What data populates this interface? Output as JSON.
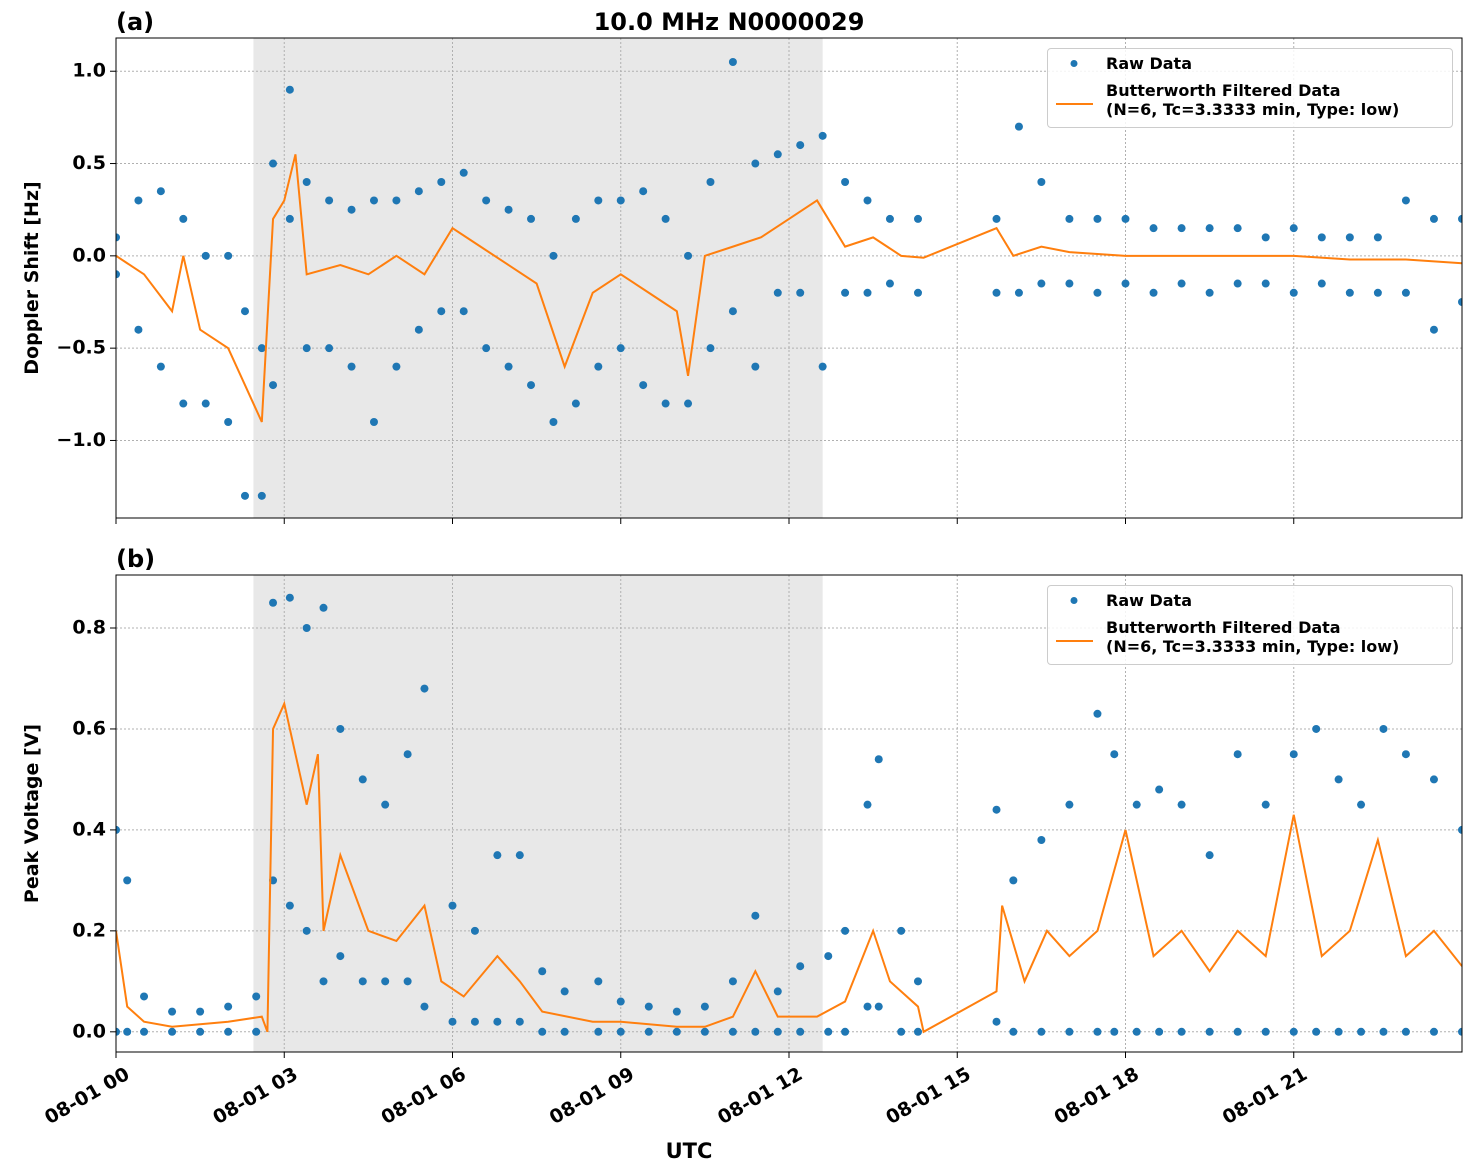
{
  "chart_data": [
    {
      "type": "scatter",
      "title": "10.0 MHz N0000029",
      "panel_label": "(a)",
      "ylabel": "Doppler Shift [Hz]",
      "xlim": [
        0,
        24
      ],
      "ylim": [
        -1.42,
        1.18
      ],
      "grid": true,
      "legend": "upper right",
      "shade": [
        2.45,
        12.6
      ],
      "shade_color": "#e8e8e8",
      "xticks": [
        {
          "value": 0,
          "label": "08-01 00"
        },
        {
          "value": 3,
          "label": "08-01 03"
        },
        {
          "value": 6,
          "label": "08-01 06"
        },
        {
          "value": 9,
          "label": "08-01 09"
        },
        {
          "value": 12,
          "label": "08-01 12"
        },
        {
          "value": 15,
          "label": "08-01 15"
        },
        {
          "value": 18,
          "label": "08-01 18"
        },
        {
          "value": 21,
          "label": "08-01 21"
        }
      ],
      "yticks": [
        {
          "value": -1.0,
          "label": "−1.0"
        },
        {
          "value": -0.5,
          "label": "−0.5"
        },
        {
          "value": 0.0,
          "label": "0.0"
        },
        {
          "value": 0.5,
          "label": "0.5"
        },
        {
          "value": 1.0,
          "label": "1.0"
        }
      ],
      "series": [
        {
          "name": "Raw Data",
          "kind": "marker",
          "color": "#1f77b4",
          "x": [
            0,
            0,
            0.4,
            0.4,
            0.8,
            0.8,
            1.2,
            1.2,
            1.6,
            1.6,
            2.0,
            2.0,
            2.3,
            2.3,
            2.6,
            2.6,
            2.8,
            2.8,
            3.1,
            3.1,
            3.4,
            3.4,
            3.8,
            3.8,
            4.2,
            4.2,
            4.6,
            4.6,
            5.0,
            5.0,
            5.4,
            5.4,
            5.8,
            5.8,
            6.2,
            6.2,
            6.6,
            6.6,
            7.0,
            7.0,
            7.4,
            7.4,
            7.8,
            7.8,
            8.2,
            8.2,
            8.6,
            8.6,
            9.0,
            9.0,
            9.4,
            9.4,
            9.8,
            9.8,
            10.2,
            10.2,
            10.6,
            10.6,
            11.0,
            11.0,
            11.4,
            11.4,
            11.8,
            11.8,
            12.2,
            12.2,
            12.6,
            12.6,
            13.0,
            13.0,
            13.4,
            13.4,
            13.8,
            13.8,
            14.3,
            14.3,
            15.7,
            15.7,
            16.1,
            16.1,
            16.5,
            16.5,
            17.0,
            17.0,
            17.5,
            17.5,
            18.0,
            18.0,
            18.5,
            18.5,
            19.0,
            19.0,
            19.5,
            19.5,
            20.0,
            20.0,
            20.5,
            20.5,
            21.0,
            21.0,
            21.5,
            21.5,
            22.0,
            22.0,
            22.5,
            22.5,
            23.0,
            23.0,
            23.5,
            23.5,
            24.0,
            24.0
          ],
          "values": [
            0.1,
            -0.1,
            0.3,
            -0.4,
            0.35,
            -0.6,
            0.2,
            -0.8,
            0.0,
            -0.8,
            0.0,
            -0.9,
            -0.3,
            -1.3,
            -0.5,
            -1.3,
            0.5,
            -0.7,
            0.9,
            0.2,
            0.4,
            -0.5,
            0.3,
            -0.5,
            0.25,
            -0.6,
            0.3,
            -0.9,
            0.3,
            -0.6,
            0.35,
            -0.4,
            0.4,
            -0.3,
            0.45,
            -0.3,
            0.3,
            -0.5,
            0.25,
            -0.6,
            0.2,
            -0.7,
            0.0,
            -0.9,
            0.2,
            -0.8,
            0.3,
            -0.6,
            0.3,
            -0.5,
            0.35,
            -0.7,
            0.2,
            -0.8,
            0.0,
            -0.8,
            0.4,
            -0.5,
            1.05,
            -0.3,
            0.5,
            -0.6,
            0.55,
            -0.2,
            0.6,
            -0.2,
            0.65,
            -0.6,
            0.4,
            -0.2,
            0.3,
            -0.2,
            0.2,
            -0.15,
            0.2,
            -0.2,
            0.2,
            -0.2,
            0.7,
            -0.2,
            0.4,
            -0.15,
            0.2,
            -0.15,
            0.2,
            -0.2,
            0.2,
            -0.15,
            0.15,
            -0.2,
            0.15,
            -0.15,
            0.15,
            -0.2,
            0.15,
            -0.15,
            0.1,
            -0.15,
            0.15,
            -0.2,
            0.1,
            -0.15,
            0.1,
            -0.2,
            0.1,
            -0.2,
            0.3,
            -0.2,
            0.2,
            -0.4,
            0.2,
            -0.25
          ]
        },
        {
          "name": "Butterworth Filtered Data\n(N=6, Tc=3.3333 min, Type: low)",
          "kind": "line",
          "color": "#ff7f0e",
          "x": [
            0,
            0.5,
            1.0,
            1.2,
            1.5,
            2.0,
            2.3,
            2.6,
            2.8,
            3.0,
            3.2,
            3.4,
            4,
            4.5,
            5,
            5.5,
            6,
            6.5,
            7,
            7.5,
            8,
            8.5,
            9,
            9.5,
            10,
            10.2,
            10.5,
            11,
            11.5,
            12,
            12.5,
            13,
            13.5,
            14,
            14.4,
            15.7,
            16,
            16.5,
            17,
            18,
            19,
            20,
            21,
            22,
            23,
            24
          ],
          "values": [
            0.0,
            -0.1,
            -0.3,
            0.0,
            -0.4,
            -0.5,
            -0.7,
            -0.9,
            0.2,
            0.3,
            0.55,
            -0.1,
            -0.05,
            -0.1,
            0.0,
            -0.1,
            0.15,
            0.05,
            -0.05,
            -0.15,
            -0.6,
            -0.2,
            -0.1,
            -0.2,
            -0.3,
            -0.65,
            0.0,
            0.05,
            0.1,
            0.2,
            0.3,
            0.05,
            0.1,
            0.0,
            -0.01,
            0.15,
            0.0,
            0.05,
            0.02,
            0.0,
            0.0,
            0.0,
            0.0,
            -0.02,
            -0.02,
            -0.04
          ]
        }
      ]
    },
    {
      "type": "scatter",
      "panel_label": "(b)",
      "ylabel": "Peak Voltage [V]",
      "xlabel": "UTC",
      "xlim": [
        0,
        24
      ],
      "ylim": [
        -0.04,
        0.905
      ],
      "grid": true,
      "legend": "upper right",
      "shade": [
        2.45,
        12.6
      ],
      "shade_color": "#e8e8e8",
      "xticks": [
        {
          "value": 0,
          "label": "08-01 00"
        },
        {
          "value": 3,
          "label": "08-01 03"
        },
        {
          "value": 6,
          "label": "08-01 06"
        },
        {
          "value": 9,
          "label": "08-01 09"
        },
        {
          "value": 12,
          "label": "08-01 12"
        },
        {
          "value": 15,
          "label": "08-01 15"
        },
        {
          "value": 18,
          "label": "08-01 18"
        },
        {
          "value": 21,
          "label": "08-01 21"
        }
      ],
      "yticks": [
        {
          "value": 0.0,
          "label": "0.0"
        },
        {
          "value": 0.2,
          "label": "0.2"
        },
        {
          "value": 0.4,
          "label": "0.4"
        },
        {
          "value": 0.6,
          "label": "0.6"
        },
        {
          "value": 0.8,
          "label": "0.8"
        }
      ],
      "series": [
        {
          "name": "Raw Data",
          "kind": "marker",
          "color": "#1f77b4",
          "x": [
            0,
            0,
            0.2,
            0.2,
            0.5,
            0.5,
            1.0,
            1.0,
            1.5,
            1.5,
            2.0,
            2.0,
            2.5,
            2.5,
            2.8,
            2.8,
            3.1,
            3.1,
            3.4,
            3.4,
            3.7,
            3.7,
            4.0,
            4.0,
            4.4,
            4.4,
            4.8,
            4.8,
            5.2,
            5.2,
            5.5,
            5.5,
            6.0,
            6.0,
            6.4,
            6.4,
            6.8,
            6.8,
            7.2,
            7.2,
            7.6,
            7.6,
            8.0,
            8.0,
            8.6,
            8.6,
            9.0,
            9.0,
            9.5,
            9.5,
            10.0,
            10.0,
            10.5,
            10.5,
            11.0,
            11.0,
            11.4,
            11.4,
            11.8,
            11.8,
            12.2,
            12.2,
            12.7,
            12.7,
            13.0,
            13.0,
            13.4,
            13.4,
            13.6,
            13.6,
            14.0,
            14.0,
            14.3,
            14.3,
            15.7,
            15.7,
            16.0,
            16.0,
            16.5,
            16.5,
            17.0,
            17.0,
            17.5,
            17.5,
            17.8,
            17.8,
            18.2,
            18.2,
            18.6,
            18.6,
            19.0,
            19.0,
            19.5,
            19.5,
            20.0,
            20.0,
            20.5,
            20.5,
            21.0,
            21.0,
            21.4,
            21.4,
            21.8,
            21.8,
            22.2,
            22.2,
            22.6,
            22.6,
            23.0,
            23.0,
            23.5,
            23.5,
            24.0,
            24.0
          ],
          "values": [
            0.4,
            0.0,
            0.3,
            0.0,
            0.07,
            0.0,
            0.04,
            0.0,
            0.04,
            0.0,
            0.05,
            0.0,
            0.07,
            0.0,
            0.85,
            0.3,
            0.86,
            0.25,
            0.8,
            0.2,
            0.84,
            0.1,
            0.6,
            0.15,
            0.5,
            0.1,
            0.45,
            0.1,
            0.55,
            0.1,
            0.68,
            0.05,
            0.25,
            0.02,
            0.2,
            0.02,
            0.35,
            0.02,
            0.35,
            0.02,
            0.12,
            0.0,
            0.08,
            0.0,
            0.1,
            0.0,
            0.06,
            0.0,
            0.05,
            0.0,
            0.04,
            0.0,
            0.05,
            0.0,
            0.1,
            0.0,
            0.23,
            0.0,
            0.08,
            0.0,
            0.13,
            0.0,
            0.15,
            0.0,
            0.2,
            0.0,
            0.45,
            0.05,
            0.54,
            0.05,
            0.2,
            0.0,
            0.1,
            0.0,
            0.44,
            0.02,
            0.3,
            0.0,
            0.38,
            0.0,
            0.45,
            0.0,
            0.63,
            0.0,
            0.55,
            0.0,
            0.45,
            0.0,
            0.48,
            0.0,
            0.45,
            0.0,
            0.35,
            0.0,
            0.55,
            0.0,
            0.45,
            0.0,
            0.55,
            0.0,
            0.6,
            0.0,
            0.5,
            0.0,
            0.45,
            0.0,
            0.6,
            0.0,
            0.55,
            0.0,
            0.5,
            0.0,
            0.4,
            0.0
          ]
        },
        {
          "name": "Butterworth Filtered Data\n(N=6, Tc=3.3333 min, Type: low)",
          "kind": "line",
          "color": "#ff7f0e",
          "x": [
            0,
            0.2,
            0.5,
            1,
            2,
            2.6,
            2.7,
            2.8,
            3.0,
            3.2,
            3.4,
            3.6,
            3.7,
            4.0,
            4.5,
            5,
            5.5,
            5.8,
            6.2,
            6.8,
            7.2,
            7.6,
            8.5,
            9,
            10,
            10.5,
            11,
            11.4,
            11.8,
            12.5,
            13,
            13.5,
            13.8,
            14.3,
            14.4,
            15.7,
            15.8,
            16.2,
            16.6,
            17,
            17.5,
            18,
            18.5,
            19,
            19.5,
            20,
            20.5,
            21,
            21.5,
            22,
            22.5,
            23,
            23.5,
            24
          ],
          "values": [
            0.2,
            0.05,
            0.02,
            0.01,
            0.02,
            0.03,
            0.0,
            0.6,
            0.65,
            0.55,
            0.45,
            0.55,
            0.2,
            0.35,
            0.2,
            0.18,
            0.25,
            0.1,
            0.07,
            0.15,
            0.1,
            0.04,
            0.02,
            0.02,
            0.01,
            0.01,
            0.03,
            0.12,
            0.03,
            0.03,
            0.06,
            0.2,
            0.1,
            0.05,
            0.0,
            0.08,
            0.25,
            0.1,
            0.2,
            0.15,
            0.2,
            0.4,
            0.15,
            0.2,
            0.12,
            0.2,
            0.15,
            0.43,
            0.15,
            0.2,
            0.38,
            0.15,
            0.2,
            0.13
          ]
        }
      ]
    }
  ]
}
